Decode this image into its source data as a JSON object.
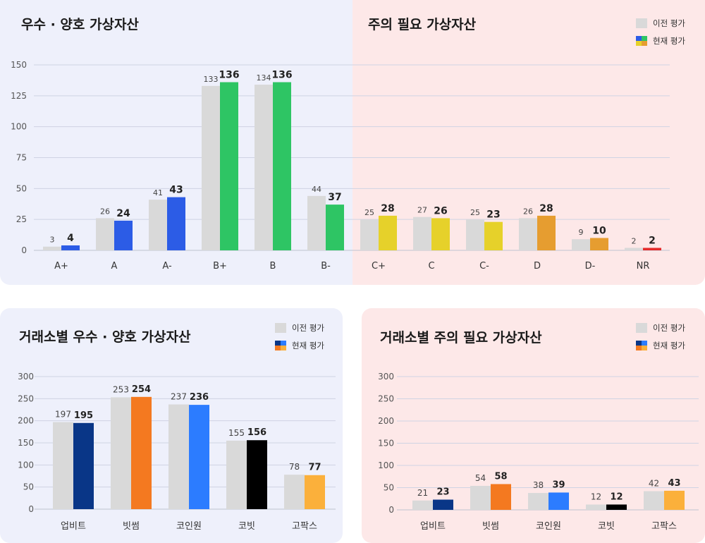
{
  "legend": {
    "prev_label": "이전 평가",
    "cur_label": "현재 평가"
  },
  "titles": {
    "top_left": "우수 · 양호 가상자산",
    "top_right": "주의 필요 가상자산",
    "bottom_left": "거래소별 우수 · 양호 가상자산",
    "bottom_right": "거래소별 주의 필요 가상자산"
  },
  "colors": {
    "prev": "#d9d9d9",
    "blue": "#2c5ce6",
    "green": "#2ec564",
    "yellow": "#e6d12a",
    "orange": "#e69d30",
    "red": "#e52b2b",
    "upbit": "#093687",
    "bithumb": "#f47920",
    "coinone": "#2c7cff",
    "korbit": "#000000",
    "gopax": "#fbb03b",
    "bg_good": "#eef0fb",
    "bg_warn": "#fde8e8"
  },
  "chart_data": [
    {
      "id": "grade-distribution",
      "type": "bar",
      "categories": [
        "A+",
        "A",
        "A-",
        "B+",
        "B",
        "B-",
        "C+",
        "C",
        "C-",
        "D",
        "D-",
        "NR"
      ],
      "series": [
        {
          "name": "이전 평가",
          "values": [
            3,
            26,
            41,
            133,
            134,
            44,
            25,
            27,
            25,
            26,
            9,
            2
          ]
        },
        {
          "name": "현재 평가",
          "values": [
            4,
            24,
            43,
            136,
            136,
            37,
            28,
            26,
            23,
            28,
            10,
            2
          ]
        }
      ],
      "ylim": [
        0,
        150
      ],
      "yticks": [
        0,
        25,
        50,
        75,
        100,
        125,
        150
      ],
      "grid": true
    },
    {
      "id": "exchange-good",
      "type": "bar",
      "categories": [
        "업비트",
        "빗썸",
        "코인원",
        "코빗",
        "고팍스"
      ],
      "series": [
        {
          "name": "이전 평가",
          "values": [
            197,
            253,
            237,
            155,
            78
          ]
        },
        {
          "name": "현재 평가",
          "values": [
            195,
            254,
            236,
            156,
            77
          ]
        }
      ],
      "ylim": [
        0,
        300
      ],
      "yticks": [
        0,
        50,
        100,
        150,
        200,
        250,
        300
      ],
      "grid": true
    },
    {
      "id": "exchange-warn",
      "type": "bar",
      "categories": [
        "업비트",
        "빗썸",
        "코인원",
        "코빗",
        "고팍스"
      ],
      "series": [
        {
          "name": "이전 평가",
          "values": [
            21,
            54,
            38,
            12,
            42
          ]
        },
        {
          "name": "현재 평가",
          "values": [
            23,
            58,
            39,
            12,
            43
          ]
        }
      ],
      "ylim": [
        0,
        300
      ],
      "yticks": [
        0,
        50,
        100,
        150,
        200,
        250,
        300
      ],
      "grid": true
    }
  ]
}
